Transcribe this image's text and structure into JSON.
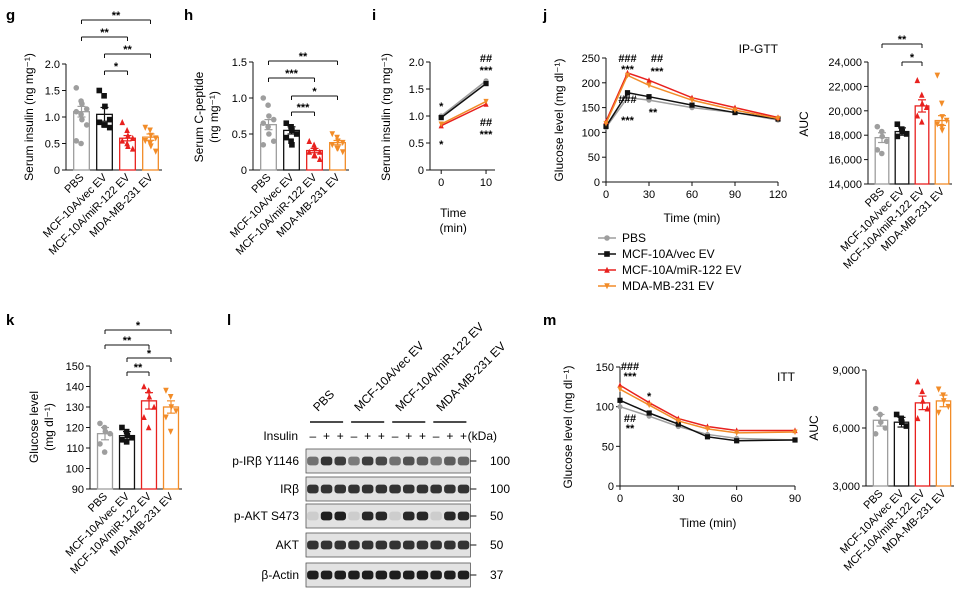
{
  "colors": {
    "pbs": "#9e9e9e",
    "vec": "#111111",
    "mir": "#e8211e",
    "mda": "#f28c28"
  },
  "groups": [
    "PBS",
    "MCF-10A/vec EV",
    "MCF-10A/miR-122 EV",
    "MDA-MB-231 EV"
  ],
  "legend": [
    "PBS",
    "MCF-10A/vec EV",
    "MCF-10A/miR-122 EV",
    "MDA-MB-231 EV"
  ],
  "panels": {
    "g": {
      "letter": "g",
      "ylabel": "Serum insulin (ng mg⁻¹)",
      "yticks": [
        "0",
        "0.5",
        "1.0",
        "1.5",
        "2.0"
      ],
      "sig": [
        "**",
        "**",
        "**",
        "*"
      ]
    },
    "h": {
      "letter": "h",
      "ylabel1": "Serum C-peptide",
      "ylabel2": "(ng mg⁻¹)",
      "yticks": [
        "0",
        "0.5",
        "1.0",
        "1.5"
      ],
      "sig": [
        "**",
        "***",
        "*",
        "***"
      ]
    },
    "i": {
      "letter": "i",
      "ylabel": "Serum insulin (ng mg⁻¹)",
      "yticks": [
        "0",
        "0.5",
        "1.0",
        "1.5",
        "2.0"
      ],
      "xticks": [
        "0",
        "10"
      ],
      "xlabel1": "Time",
      "xlabel2": "(min)",
      "sig": [
        "##",
        "***",
        "##",
        "***",
        "*",
        "*"
      ]
    },
    "j": {
      "letter": "j",
      "title": "IP-GTT",
      "ylabel": "Glucose level (mg dl⁻¹)",
      "yticks": [
        "0",
        "50",
        "100",
        "150",
        "200",
        "250"
      ],
      "xticks": [
        "0",
        "30",
        "60",
        "90",
        "120"
      ],
      "xlabel": "Time (min)",
      "sig": [
        "###",
        "***",
        "##",
        "***",
        "###",
        "***",
        "**"
      ],
      "auc": {
        "ylabel": "AUC",
        "yticks": [
          "14,000",
          "16,000",
          "18,000",
          "20,000",
          "22,000",
          "24,000"
        ],
        "sig": [
          "**",
          "*"
        ]
      }
    },
    "k": {
      "letter": "k",
      "ylabel1": "Glucose level",
      "ylabel2": "(mg dl⁻¹)",
      "yticks": [
        "90",
        "100",
        "110",
        "120",
        "130",
        "140",
        "150"
      ],
      "sig": [
        "*",
        "**",
        "*",
        "**"
      ]
    },
    "l": {
      "letter": "l",
      "insulin_label": "Insulin",
      "kda_label": "(kDa)",
      "insulin_signs": [
        "–",
        "+",
        "+",
        "–",
        "+",
        "+",
        "–",
        "+",
        "+",
        "–",
        "+",
        "+"
      ],
      "blots": [
        {
          "name": "p-IRβ Y1146",
          "kda": "100"
        },
        {
          "name": "IRβ",
          "kda": "100"
        },
        {
          "name": "p-AKT S473",
          "kda": "50"
        },
        {
          "name": "AKT",
          "kda": "50"
        },
        {
          "name": "β-Actin",
          "kda": "37"
        }
      ]
    },
    "m": {
      "letter": "m",
      "title": "ITT",
      "ylabel": "Glucose level (mg dl⁻¹)",
      "yticks": [
        "0",
        "50",
        "100",
        "150"
      ],
      "xticks": [
        "0",
        "30",
        "60",
        "90"
      ],
      "xlabel": "Time (min)",
      "sig": [
        "###",
        "***",
        "##",
        "**",
        "*"
      ],
      "auc": {
        "ylabel": "AUC",
        "yticks": [
          "3,000",
          "6,000",
          "9,000"
        ]
      }
    }
  },
  "chart_data": [
    {
      "type": "bar",
      "panel": "g",
      "ylabel": "Serum insulin (ng mg⁻¹)",
      "ylim": [
        0,
        2.0
      ],
      "categories": [
        "PBS",
        "MCF-10A/vec EV",
        "MCF-10A/miR-122 EV",
        "MDA-MB-231 EV"
      ],
      "values": [
        1.1,
        1.05,
        0.6,
        0.62
      ],
      "errors": [
        0.1,
        0.13,
        0.05,
        0.06
      ],
      "points": [
        [
          1.55,
          1.3,
          1.25,
          1.15,
          1.1,
          1.05,
          0.95,
          0.85,
          0.55,
          0.5
        ],
        [
          1.5,
          1.4,
          1.2,
          0.95,
          0.9,
          0.85,
          0.85,
          0.8
        ],
        [
          0.9,
          0.75,
          0.65,
          0.6,
          0.55,
          0.5,
          0.45,
          0.4
        ],
        [
          0.8,
          0.75,
          0.65,
          0.6,
          0.55,
          0.5,
          0.45,
          0.35
        ]
      ]
    },
    {
      "type": "bar",
      "panel": "h",
      "ylabel": "Serum C-peptide (ng mg⁻¹)",
      "ylim": [
        0,
        1.5
      ],
      "categories": [
        "PBS",
        "MCF-10A/vec EV",
        "MCF-10A/miR-122 EV",
        "MDA-MB-231 EV"
      ],
      "values": [
        0.63,
        0.55,
        0.27,
        0.38
      ],
      "errors": [
        0.07,
        0.05,
        0.03,
        0.03
      ],
      "points": [
        [
          1.0,
          0.9,
          0.75,
          0.7,
          0.65,
          0.6,
          0.5,
          0.4,
          0.35
        ],
        [
          0.65,
          0.6,
          0.55,
          0.5,
          0.45,
          0.4,
          0.35
        ],
        [
          0.4,
          0.35,
          0.3,
          0.25,
          0.25,
          0.2,
          0.2,
          0.15
        ],
        [
          0.5,
          0.45,
          0.4,
          0.38,
          0.35,
          0.3,
          0.3,
          0.25
        ]
      ]
    },
    {
      "type": "line",
      "panel": "i",
      "ylabel": "Serum insulin (ng mg⁻¹)",
      "ylim": [
        0,
        2.0
      ],
      "x": [
        0,
        10
      ],
      "series": [
        {
          "name": "PBS",
          "values": [
            1.0,
            1.65
          ]
        },
        {
          "name": "MCF-10A/vec EV",
          "values": [
            0.97,
            1.6
          ]
        },
        {
          "name": "MCF-10A/miR-122 EV",
          "values": [
            0.82,
            1.22
          ]
        },
        {
          "name": "MDA-MB-231 EV",
          "values": [
            0.85,
            1.27
          ]
        }
      ]
    },
    {
      "type": "line",
      "panel": "j",
      "ylabel": "Glucose level (mg dl⁻¹)",
      "ylim": [
        0,
        250
      ],
      "x": [
        0,
        15,
        30,
        60,
        90,
        120
      ],
      "series": [
        {
          "name": "PBS",
          "values": [
            110,
            170,
            165,
            150,
            140,
            125
          ]
        },
        {
          "name": "MCF-10A/vec EV",
          "values": [
            112,
            180,
            172,
            155,
            140,
            127
          ]
        },
        {
          "name": "MCF-10A/miR-122 EV",
          "values": [
            122,
            220,
            205,
            170,
            150,
            130
          ]
        },
        {
          "name": "MDA-MB-231 EV",
          "values": [
            118,
            215,
            195,
            165,
            145,
            128
          ]
        }
      ]
    },
    {
      "type": "bar",
      "panel": "j-AUC",
      "ylabel": "AUC",
      "ylim": [
        14000,
        24000
      ],
      "categories": [
        "PBS",
        "MCF-10A/vec EV",
        "MCF-10A/miR-122 EV",
        "MDA-MB-231 EV"
      ],
      "values": [
        17800,
        18300,
        20400,
        19200
      ],
      "errors": [
        400,
        300,
        500,
        400
      ],
      "points": [
        [
          18700,
          18300,
          17900,
          17500,
          16800,
          16500
        ],
        [
          18900,
          18500,
          18300,
          18100,
          17900
        ],
        [
          22500,
          21300,
          20600,
          20300,
          19600,
          19100
        ],
        [
          22900,
          20600,
          19500,
          19200,
          18900,
          18700,
          18400
        ]
      ]
    },
    {
      "type": "bar",
      "panel": "k",
      "ylabel": "Glucose level (mg dl⁻¹)",
      "ylim": [
        90,
        150
      ],
      "categories": [
        "PBS",
        "MCF-10A/vec EV",
        "MCF-10A/miR-122 EV",
        "MDA-MB-231 EV"
      ],
      "values": [
        117,
        116,
        133,
        130
      ],
      "errors": [
        3,
        2,
        4,
        3
      ],
      "points": [
        [
          122,
          120,
          118,
          117,
          112,
          108
        ],
        [
          120,
          118,
          116,
          115,
          114,
          113
        ],
        [
          140,
          138,
          135,
          130,
          125,
          120
        ],
        [
          138,
          135,
          130,
          128,
          125,
          118
        ]
      ]
    },
    {
      "type": "line",
      "panel": "m",
      "ylabel": "Glucose level (mg dl⁻¹)",
      "ylim": [
        0,
        150
      ],
      "x": [
        0,
        15,
        30,
        45,
        60,
        90
      ],
      "series": [
        {
          "name": "PBS",
          "values": [
            100,
            88,
            75,
            65,
            60,
            58
          ]
        },
        {
          "name": "MCF-10A/vec EV",
          "values": [
            108,
            92,
            78,
            62,
            57,
            58
          ]
        },
        {
          "name": "MCF-10A/miR-122 EV",
          "values": [
            127,
            105,
            85,
            75,
            70,
            70
          ]
        },
        {
          "name": "MDA-MB-231 EV",
          "values": [
            122,
            102,
            82,
            72,
            67,
            68
          ]
        }
      ]
    },
    {
      "type": "bar",
      "panel": "m-AUC",
      "ylabel": "AUC",
      "ylim": [
        3000,
        9000
      ],
      "categories": [
        "PBS",
        "MCF-10A/vec EV",
        "MCF-10A/miR-122 EV",
        "MDA-MB-231 EV"
      ],
      "values": [
        6400,
        6300,
        7300,
        7400
      ],
      "errors": [
        300,
        250,
        350,
        300
      ],
      "points": [
        [
          7000,
          6700,
          6300,
          6000,
          5700
        ],
        [
          6700,
          6500,
          6300,
          6100
        ],
        [
          8400,
          7900,
          7400,
          7000,
          6500
        ],
        [
          8000,
          7700,
          7400,
          7100,
          6800
        ]
      ]
    }
  ]
}
